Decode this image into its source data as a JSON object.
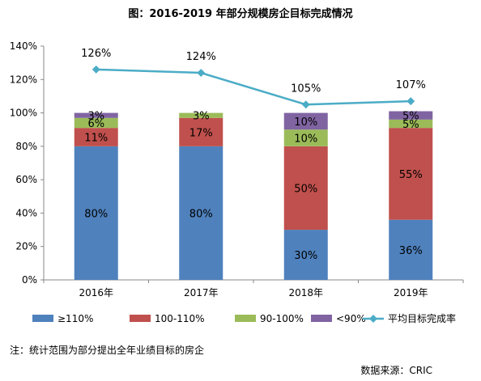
{
  "title": "图：2016-2019 年部分规模房企目标完成情况",
  "chart_data": {
    "type": "bar",
    "stacked": true,
    "categories": [
      "2016年",
      "2017年",
      "2018年",
      "2019年"
    ],
    "series": [
      {
        "name": "≥110%",
        "values": [
          80,
          80,
          30,
          36
        ],
        "labels": [
          "80%",
          "80%",
          "30%",
          "36%"
        ],
        "color": "#4F81BD"
      },
      {
        "name": "100-110%",
        "values": [
          11,
          17,
          50,
          55
        ],
        "labels": [
          "11%",
          "17%",
          "50%",
          "55%"
        ],
        "color": "#C0504D"
      },
      {
        "name": "90-100%",
        "values": [
          6,
          3,
          10,
          5
        ],
        "labels": [
          "6%",
          "3%",
          "10%",
          "5%"
        ],
        "color": "#9BBB59"
      },
      {
        "name": "<90%",
        "values": [
          3,
          0,
          10,
          5
        ],
        "labels": [
          "3%",
          "",
          "10%",
          "5%"
        ],
        "color": "#8064A2"
      }
    ],
    "line": {
      "name": "平均目标完成率",
      "values": [
        126,
        124,
        105,
        107
      ],
      "labels": [
        "126%",
        "124%",
        "105%",
        "107%"
      ],
      "color": "#4BACC6"
    },
    "yaxis": {
      "min": 0,
      "max": 140,
      "step": 20,
      "tick_suffix": "%"
    },
    "grid": false,
    "legend_position": "bottom"
  },
  "footnote": "注：统计范围为部分提出全年业绩目标的房企",
  "source": "数据来源：CRIC"
}
